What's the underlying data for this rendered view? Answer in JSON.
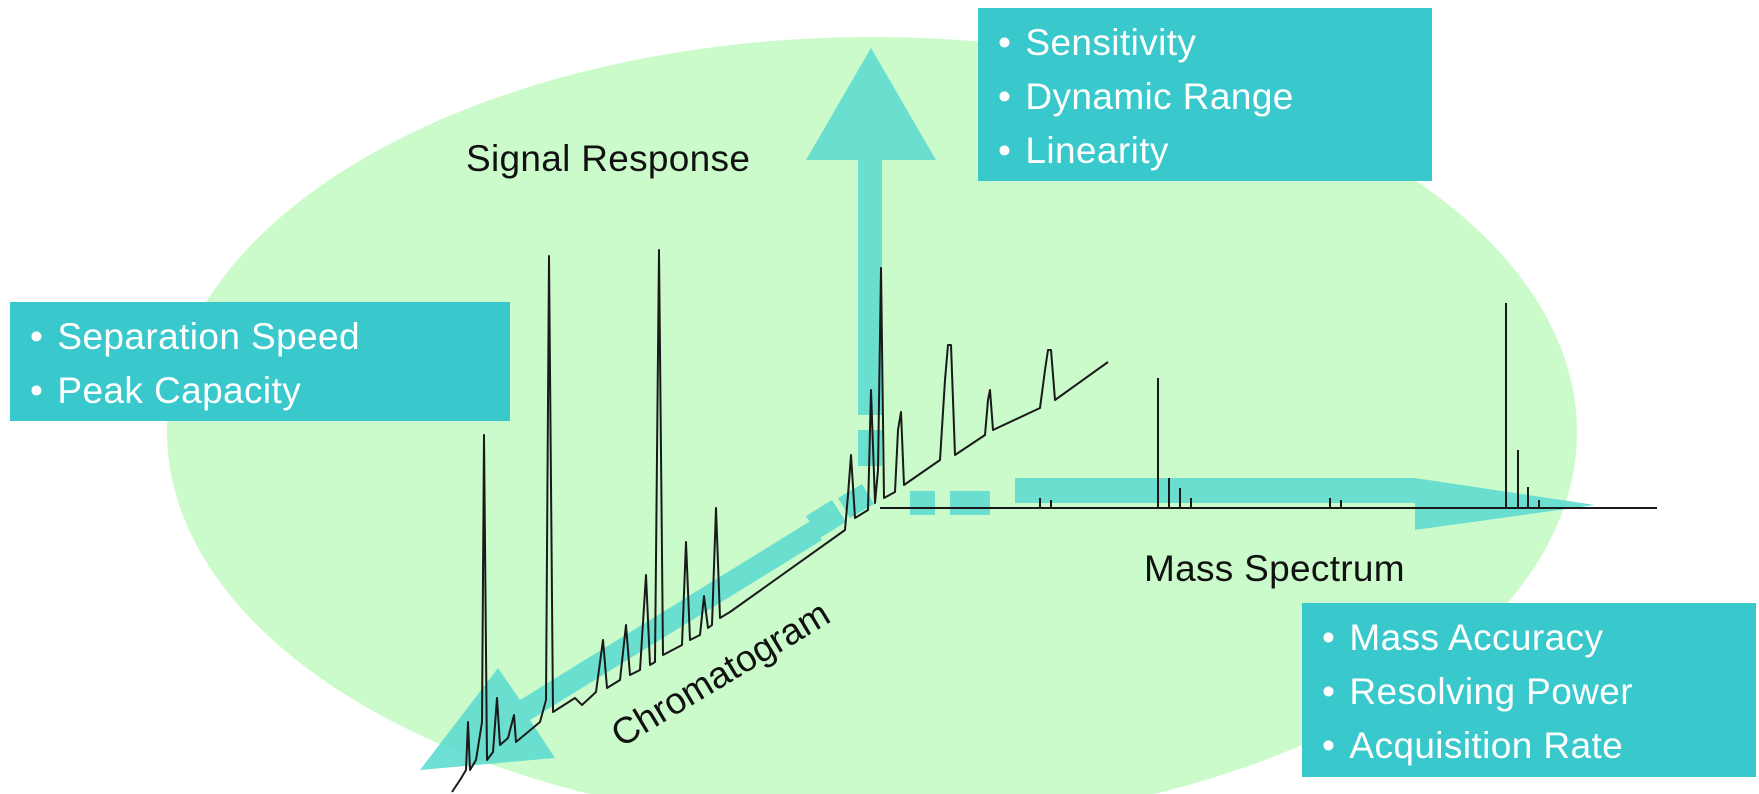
{
  "colors": {
    "ellipse": "#ccfbcb",
    "arrow": "#62dcd0",
    "info_box": "#39c8cc",
    "trace": "#1a1a1a"
  },
  "axes": {
    "signal_response": "Signal Response",
    "mass_spectrum": "Mass Spectrum",
    "chromatogram": "Chromatogram"
  },
  "boxes": {
    "detector": {
      "items": [
        "Sensitivity",
        "Dynamic Range",
        "Linearity"
      ]
    },
    "separation": {
      "items": [
        "Separation Speed",
        "Peak Capacity"
      ]
    },
    "mass": {
      "items": [
        "Mass Accuracy",
        "Resolving Power",
        "Acquisition Rate"
      ]
    }
  }
}
